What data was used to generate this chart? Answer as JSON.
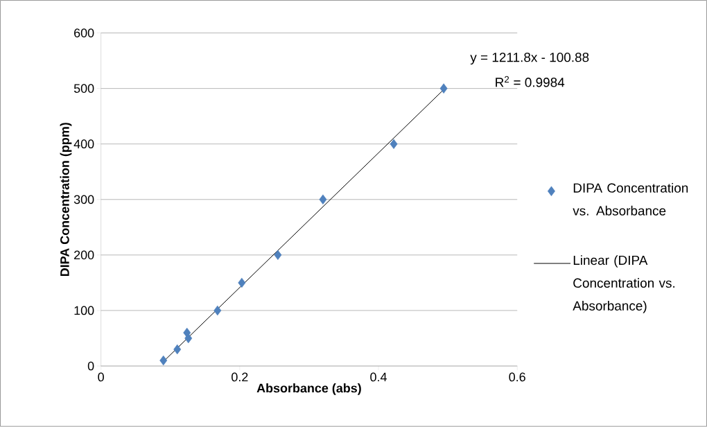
{
  "chart_data": {
    "type": "scatter",
    "xlabel": "Absorbance (abs)",
    "ylabel": "DIPA Concentration (ppm)",
    "xlim": [
      0,
      0.6
    ],
    "ylim": [
      0,
      600
    ],
    "xticks": [
      0,
      0.2,
      0.4,
      0.6
    ],
    "yticks": [
      0,
      100,
      200,
      300,
      400,
      500,
      600
    ],
    "grid": "y",
    "legend": "right",
    "annotations": [
      "y = 1211.8x - 100.88",
      "R$^{2}$ = 0.9984"
    ],
    "series": [
      {
        "name": "DIPA Concentration vs. Absorbance",
        "marker": "diamond",
        "color": "#4f81bd",
        "x": [
          0.09,
          0.11,
          0.124,
          0.126,
          0.168,
          0.203,
          0.255,
          0.32,
          0.422,
          0.494
        ],
        "values": [
          10,
          30,
          60,
          50,
          100,
          150,
          200,
          300,
          400,
          500
        ]
      },
      {
        "name": "Linear (DIPA Concentration vs. Absorbance)",
        "type": "line",
        "marker": "none",
        "color": "#000000",
        "x": [
          0.09,
          0.494
        ],
        "values": [
          8,
          498
        ]
      }
    ]
  }
}
